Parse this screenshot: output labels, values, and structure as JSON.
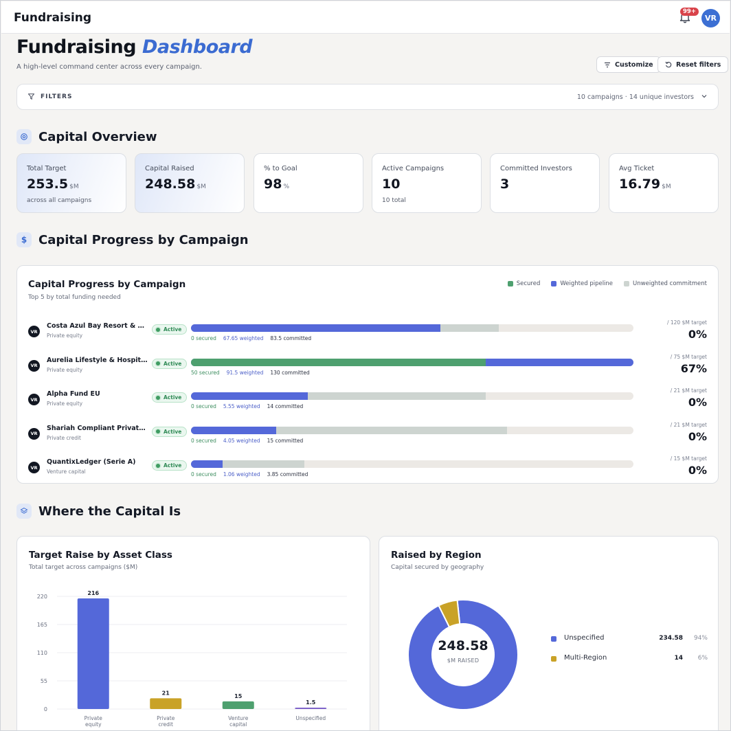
{
  "topbar": {
    "app_title": "Fundraising",
    "notifications_badge": "99+",
    "avatar_initials": "VR"
  },
  "header": {
    "title_main": "Fundraising",
    "title_accent": "Dashboard",
    "subtitle": "A high-level command center across every campaign.",
    "customize_label": "Customize",
    "reset_filters_label": "Reset filters"
  },
  "filters": {
    "label": "FILTERS",
    "summary": "10 campaigns · 14 unique investors"
  },
  "sections": {
    "capital_overview": "Capital Overview",
    "capital_progress": "Capital Progress by Campaign",
    "where_capital": "Where the Capital Is"
  },
  "kpis": [
    {
      "label": "Total Target",
      "value": "253.5",
      "unit": "$M",
      "note": "across all campaigns"
    },
    {
      "label": "Capital Raised",
      "value": "248.58",
      "unit": "$M",
      "note": ""
    },
    {
      "label": "% to Goal",
      "value": "98",
      "unit": "%",
      "note": ""
    },
    {
      "label": "Active Campaigns",
      "value": "10",
      "unit": "",
      "note": "10 total"
    },
    {
      "label": "Committed Investors",
      "value": "3",
      "unit": "",
      "note": ""
    },
    {
      "label": "Avg Ticket",
      "value": "16.79",
      "unit": "$M",
      "note": ""
    }
  ],
  "progress_card": {
    "title": "Capital Progress by Campaign",
    "subtitle": "Top 5 by total funding needed",
    "legend": {
      "secured": "Secured",
      "weighted": "Weighted pipeline",
      "unweighted": "Unweighted commitment"
    },
    "colors": {
      "secured": "#4ea06f",
      "weighted": "#5468d9",
      "unweighted": "#cdd4d0"
    },
    "rows": [
      {
        "initials": "VR",
        "name": "Costa Azul Bay Resort & Residences",
        "type": "Private equity",
        "status": "Active",
        "secured_text": "0 secured",
        "weighted_text": "67.65 weighted",
        "committed_text": "83.5 committed",
        "target_text": "/ 120 $M target",
        "pct_text": "0%",
        "target": 120,
        "secured": 0,
        "weighted": 67.65,
        "committed": 83.5
      },
      {
        "initials": "VR",
        "name": "Aurelia Lifestyle & Hospitality Fund",
        "type": "Private equity",
        "status": "Active",
        "secured_text": "50 secured",
        "weighted_text": "91.5 weighted",
        "committed_text": "130 committed",
        "target_text": "/ 75 $M target",
        "pct_text": "67%",
        "target": 75,
        "secured": 50,
        "weighted": 91.5,
        "committed": 130
      },
      {
        "initials": "VR",
        "name": "Alpha Fund EU",
        "type": "Private equity",
        "status": "Active",
        "secured_text": "0 secured",
        "weighted_text": "5.55 weighted",
        "committed_text": "14 committed",
        "target_text": "/ 21 $M target",
        "pct_text": "0%",
        "target": 21,
        "secured": 0,
        "weighted": 5.55,
        "committed": 14
      },
      {
        "initials": "VR",
        "name": "Shariah Compliant Private Credit",
        "type": "Private credit",
        "status": "Active",
        "secured_text": "0 secured",
        "weighted_text": "4.05 weighted",
        "committed_text": "15 committed",
        "target_text": "/ 21 $M target",
        "pct_text": "0%",
        "target": 21,
        "secured": 0,
        "weighted": 4.05,
        "committed": 15
      },
      {
        "initials": "VR",
        "name": "QuantixLedger (Serie A)",
        "type": "Venture capital",
        "status": "Active",
        "secured_text": "0 secured",
        "weighted_text": "1.06 weighted",
        "committed_text": "3.85 committed",
        "target_text": "/ 15 $M target",
        "pct_text": "0%",
        "target": 15,
        "secured": 0,
        "weighted": 1.06,
        "committed": 3.85
      }
    ]
  },
  "asset_card": {
    "title": "Target Raise by Asset Class",
    "subtitle": "Total target across campaigns ($M)"
  },
  "region_card": {
    "title": "Raised by Region",
    "subtitle": "Capital secured by geography",
    "center_value": "248.58",
    "center_label": "$M RAISED"
  },
  "chart_data": [
    {
      "type": "bar",
      "title": "Target Raise by Asset Class",
      "categories": [
        [
          "Private",
          "equity"
        ],
        [
          "Private",
          "credit"
        ],
        [
          "Venture",
          "capital"
        ],
        [
          "Unspecified"
        ]
      ],
      "values": [
        216,
        21,
        15,
        1.5
      ],
      "value_labels": [
        "216",
        "21",
        "15",
        "1.5"
      ],
      "colors": [
        "#5468d9",
        "#c9a227",
        "#4ea06f",
        "#7e63c9"
      ],
      "ylim": [
        0,
        220
      ],
      "yticks": [
        0,
        55,
        110,
        165,
        220
      ],
      "grid": true
    },
    {
      "type": "pie",
      "title": "Raised by Region",
      "labels": [
        "Unspecified",
        "Multi-Region"
      ],
      "values": [
        234.58,
        14
      ],
      "value_labels": [
        "234.58",
        "14"
      ],
      "percent_labels": [
        "94%",
        "6%"
      ],
      "colors": [
        "#5468d9",
        "#c9a227"
      ]
    }
  ]
}
